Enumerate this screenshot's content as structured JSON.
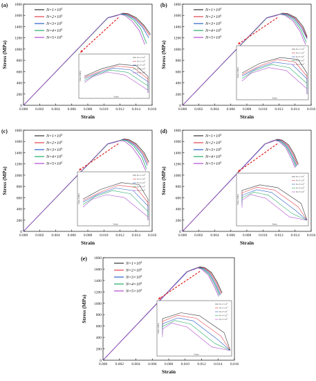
{
  "colors": {
    "N1": "#333333",
    "N2": "#e0404a",
    "N3": "#2a5fc8",
    "N4": "#22aa66",
    "N5": "#b04ad0",
    "arrow": "#e02020"
  },
  "chart_data": [
    {
      "panel": "(a)",
      "type": "line",
      "xlabel": "Strain",
      "ylabel": "Stress (MPa)",
      "xlim": [
        0,
        0.016
      ],
      "ylim": [
        0,
        1800
      ],
      "xticks": [
        "0.000",
        "0.002",
        "0.004",
        "0.006",
        "0.008",
        "0.010",
        "0.012",
        "0.014",
        "0.016"
      ],
      "yticks": [
        "0",
        "200",
        "400",
        "600",
        "800",
        "1000",
        "1200",
        "1400",
        "1600",
        "1800"
      ],
      "series": [
        {
          "name": "N=1×10^5",
          "points": [
            [
              0,
              0
            ],
            [
              0.0105,
              1560
            ],
            [
              0.0118,
              1610
            ],
            [
              0.0124,
              1640
            ],
            [
              0.013,
              1630
            ],
            [
              0.014,
              1560
            ],
            [
              0.015,
              1420
            ],
            [
              0.0158,
              1260
            ]
          ]
        },
        {
          "name": "N=2×10^5",
          "points": [
            [
              0,
              0
            ],
            [
              0.0105,
              1560
            ],
            [
              0.0118,
              1605
            ],
            [
              0.0123,
              1635
            ],
            [
              0.0129,
              1625
            ],
            [
              0.0139,
              1550
            ],
            [
              0.0149,
              1410
            ],
            [
              0.0157,
              1240
            ]
          ]
        },
        {
          "name": "N=3×10^5",
          "points": [
            [
              0,
              0
            ],
            [
              0.0105,
              1560
            ],
            [
              0.0117,
              1600
            ],
            [
              0.0122,
              1630
            ],
            [
              0.0128,
              1618
            ],
            [
              0.0138,
              1540
            ],
            [
              0.0148,
              1390
            ],
            [
              0.0156,
              1200
            ]
          ]
        },
        {
          "name": "N=4×10^5",
          "points": [
            [
              0,
              0
            ],
            [
              0.0105,
              1555
            ],
            [
              0.0116,
              1595
            ],
            [
              0.0121,
              1625
            ],
            [
              0.0127,
              1610
            ],
            [
              0.0137,
              1520
            ],
            [
              0.0146,
              1360
            ],
            [
              0.0153,
              1100
            ]
          ]
        },
        {
          "name": "N=5×10^5",
          "points": [
            [
              0,
              0
            ],
            [
              0.0104,
              1550
            ],
            [
              0.0115,
              1590
            ],
            [
              0.012,
              1620
            ],
            [
              0.0126,
              1600
            ],
            [
              0.0135,
              1500
            ],
            [
              0.0144,
              1330
            ],
            [
              0.0151,
              1080
            ]
          ]
        }
      ]
    },
    {
      "panel": "(b)",
      "type": "line",
      "xlabel": "Strain",
      "ylabel": "Stress (MPa)",
      "xlim": [
        0,
        0.016
      ],
      "ylim": [
        0,
        1800
      ],
      "xticks": [
        "0.000",
        "0.002",
        "0.004",
        "0.006",
        "0.008",
        "0.010",
        "0.012",
        "0.014",
        "0.016"
      ],
      "yticks": [
        "0",
        "200",
        "400",
        "600",
        "800",
        "1000",
        "1200",
        "1400",
        "1600",
        "1800"
      ],
      "series": [
        {
          "name": "N=1×10^5",
          "points": [
            [
              0,
              0
            ],
            [
              0.0105,
              1560
            ],
            [
              0.0118,
              1610
            ],
            [
              0.0125,
              1640
            ],
            [
              0.0131,
              1630
            ],
            [
              0.0141,
              1560
            ],
            [
              0.015,
              1400
            ],
            [
              0.0155,
              1220
            ]
          ]
        },
        {
          "name": "N=2×10^5",
          "points": [
            [
              0,
              0
            ],
            [
              0.0105,
              1560
            ],
            [
              0.0118,
              1605
            ],
            [
              0.0124,
              1638
            ],
            [
              0.013,
              1625
            ],
            [
              0.014,
              1550
            ],
            [
              0.0149,
              1390
            ],
            [
              0.0155,
              1200
            ]
          ]
        },
        {
          "name": "N=3×10^5",
          "points": [
            [
              0,
              0
            ],
            [
              0.0105,
              1560
            ],
            [
              0.0117,
              1600
            ],
            [
              0.0123,
              1632
            ],
            [
              0.0129,
              1620
            ],
            [
              0.0139,
              1545
            ],
            [
              0.0148,
              1380
            ],
            [
              0.0155,
              1180
            ]
          ]
        },
        {
          "name": "N=4×10^5",
          "points": [
            [
              0,
              0
            ],
            [
              0.0105,
              1555
            ],
            [
              0.0116,
              1595
            ],
            [
              0.0122,
              1628
            ],
            [
              0.0128,
              1612
            ],
            [
              0.0138,
              1530
            ],
            [
              0.0147,
              1350
            ],
            [
              0.0154,
              1120
            ]
          ]
        },
        {
          "name": "N=5×10^5",
          "points": [
            [
              0,
              0
            ],
            [
              0.0104,
              1550
            ],
            [
              0.0115,
              1590
            ],
            [
              0.0121,
              1620
            ],
            [
              0.0127,
              1605
            ],
            [
              0.0137,
              1510
            ],
            [
              0.0146,
              1320
            ],
            [
              0.0153,
              1080
            ]
          ]
        }
      ]
    },
    {
      "panel": "(c)",
      "type": "line",
      "xlabel": "Strain",
      "ylabel": "Stress (MPa)",
      "xlim": [
        0,
        0.016
      ],
      "ylim": [
        0,
        1800
      ],
      "xticks": [
        "0.000",
        "0.002",
        "0.004",
        "0.006",
        "0.008",
        "0.010",
        "0.012",
        "0.014",
        "0.016"
      ],
      "yticks": [
        "0",
        "200",
        "400",
        "600",
        "800",
        "1000",
        "1200",
        "1400",
        "1600",
        "1800"
      ],
      "series": [
        {
          "name": "N=1×10^5",
          "points": [
            [
              0,
              0
            ],
            [
              0.0105,
              1560
            ],
            [
              0.0118,
              1610
            ],
            [
              0.0125,
              1645
            ],
            [
              0.0131,
              1635
            ],
            [
              0.014,
              1560
            ],
            [
              0.015,
              1400
            ],
            [
              0.0156,
              1230
            ]
          ]
        },
        {
          "name": "N=2×10^5",
          "points": [
            [
              0,
              0
            ],
            [
              0.0105,
              1560
            ],
            [
              0.0118,
              1605
            ],
            [
              0.0124,
              1640
            ],
            [
              0.013,
              1628
            ],
            [
              0.0139,
              1550
            ],
            [
              0.0149,
              1385
            ],
            [
              0.0155,
              1200
            ]
          ]
        },
        {
          "name": "N=3×10^5",
          "points": [
            [
              0,
              0
            ],
            [
              0.0105,
              1560
            ],
            [
              0.0117,
              1600
            ],
            [
              0.0123,
              1633
            ],
            [
              0.0129,
              1620
            ],
            [
              0.0138,
              1540
            ],
            [
              0.0148,
              1370
            ],
            [
              0.0154,
              1170
            ]
          ]
        },
        {
          "name": "N=4×10^5",
          "points": [
            [
              0,
              0
            ],
            [
              0.0105,
              1555
            ],
            [
              0.0116,
              1596
            ],
            [
              0.0122,
              1628
            ],
            [
              0.0128,
              1612
            ],
            [
              0.0137,
              1520
            ],
            [
              0.0147,
              1330
            ],
            [
              0.0153,
              1110
            ]
          ]
        },
        {
          "name": "N=5×10^5",
          "points": [
            [
              0,
              0
            ],
            [
              0.0104,
              1550
            ],
            [
              0.0115,
              1590
            ],
            [
              0.012,
              1615
            ],
            [
              0.0126,
              1600
            ],
            [
              0.0135,
              1500
            ],
            [
              0.0145,
              1300
            ],
            [
              0.0152,
              1080
            ]
          ]
        }
      ]
    },
    {
      "panel": "(d)",
      "type": "line",
      "xlabel": "Strain",
      "ylabel": "Stress (MPa)",
      "xlim": [
        0,
        0.016
      ],
      "ylim": [
        0,
        1800
      ],
      "xticks": [
        "0.000",
        "0.002",
        "0.004",
        "0.006",
        "0.008",
        "0.010",
        "0.012",
        "0.014",
        "0.016"
      ],
      "yticks": [
        "0",
        "200",
        "400",
        "600",
        "800",
        "1000",
        "1200",
        "1400",
        "1600",
        "1800"
      ],
      "series": [
        {
          "name": "N=1×10^5",
          "points": [
            [
              0,
              0
            ],
            [
              0.0103,
              1560
            ],
            [
              0.0112,
              1610
            ],
            [
              0.0118,
              1640
            ],
            [
              0.0124,
              1625
            ],
            [
              0.0132,
              1540
            ],
            [
              0.0139,
              1370
            ],
            [
              0.0144,
              1190
            ]
          ]
        },
        {
          "name": "N=2×10^5",
          "points": [
            [
              0,
              0
            ],
            [
              0.0103,
              1560
            ],
            [
              0.0112,
              1605
            ],
            [
              0.0117,
              1635
            ],
            [
              0.0123,
              1620
            ],
            [
              0.0131,
              1530
            ],
            [
              0.0138,
              1360
            ],
            [
              0.0143,
              1180
            ]
          ]
        },
        {
          "name": "N=3×10^5",
          "points": [
            [
              0,
              0
            ],
            [
              0.0103,
              1558
            ],
            [
              0.0111,
              1600
            ],
            [
              0.0117,
              1630
            ],
            [
              0.0122,
              1615
            ],
            [
              0.013,
              1520
            ],
            [
              0.0137,
              1340
            ],
            [
              0.0142,
              1160
            ]
          ]
        },
        {
          "name": "N=4×10^5",
          "points": [
            [
              0,
              0
            ],
            [
              0.0102,
              1555
            ],
            [
              0.0111,
              1595
            ],
            [
              0.0116,
              1625
            ],
            [
              0.0121,
              1608
            ],
            [
              0.0129,
              1510
            ],
            [
              0.0136,
              1330
            ],
            [
              0.0141,
              1150
            ]
          ]
        },
        {
          "name": "N=5×10^5",
          "points": [
            [
              0,
              0
            ],
            [
              0.0102,
              1550
            ],
            [
              0.011,
              1590
            ],
            [
              0.0115,
              1620
            ],
            [
              0.012,
              1600
            ],
            [
              0.0128,
              1500
            ],
            [
              0.0135,
              1310
            ],
            [
              0.014,
              1130
            ]
          ]
        }
      ]
    },
    {
      "panel": "(e)",
      "type": "line",
      "xlabel": "Strain",
      "ylabel": "Stress (MPa)",
      "xlim": [
        0,
        0.016
      ],
      "ylim": [
        0,
        1800
      ],
      "xticks": [
        "0.000",
        "0.002",
        "0.004",
        "0.006",
        "0.008",
        "0.010",
        "0.012",
        "0.014",
        "0.016"
      ],
      "yticks": [
        "0",
        "200",
        "400",
        "600",
        "800",
        "1000",
        "1200",
        "1400",
        "1600",
        "1800"
      ],
      "series": [
        {
          "name": "N=1×10^5",
          "points": [
            [
              0,
              0
            ],
            [
              0.0103,
              1560
            ],
            [
              0.0112,
              1610
            ],
            [
              0.0118,
              1640
            ],
            [
              0.0124,
              1625
            ],
            [
              0.0132,
              1540
            ],
            [
              0.0139,
              1370
            ],
            [
              0.0145,
              1180
            ]
          ]
        },
        {
          "name": "N=2×10^5",
          "points": [
            [
              0,
              0
            ],
            [
              0.0103,
              1560
            ],
            [
              0.0112,
              1605
            ],
            [
              0.0117,
              1635
            ],
            [
              0.0123,
              1620
            ],
            [
              0.0131,
              1530
            ],
            [
              0.0138,
              1360
            ],
            [
              0.0144,
              1170
            ]
          ]
        },
        {
          "name": "N=3×10^5",
          "points": [
            [
              0,
              0
            ],
            [
              0.0103,
              1558
            ],
            [
              0.0111,
              1600
            ],
            [
              0.0117,
              1630
            ],
            [
              0.0122,
              1615
            ],
            [
              0.013,
              1520
            ],
            [
              0.0137,
              1340
            ],
            [
              0.0143,
              1150
            ]
          ]
        },
        {
          "name": "N=4×10^5",
          "points": [
            [
              0,
              0
            ],
            [
              0.0102,
              1555
            ],
            [
              0.0111,
              1595
            ],
            [
              0.0116,
              1625
            ],
            [
              0.0121,
              1608
            ],
            [
              0.0129,
              1510
            ],
            [
              0.0136,
              1330
            ],
            [
              0.0142,
              1140
            ]
          ]
        },
        {
          "name": "N=5×10^5",
          "points": [
            [
              0,
              0
            ],
            [
              0.0102,
              1550
            ],
            [
              0.011,
              1590
            ],
            [
              0.0115,
              1620
            ],
            [
              0.012,
              1600
            ],
            [
              0.0128,
              1500
            ],
            [
              0.0135,
              1310
            ],
            [
              0.0141,
              1120
            ]
          ]
        }
      ]
    }
  ],
  "insets": {
    "legend": [
      "N=1×10^5",
      "N=2×10^5",
      "N=3×10^5",
      "N=4×10^5",
      "N=5×10^5"
    ],
    "ylabel": "Stress (MPa)",
    "xlabel": "Strain"
  }
}
